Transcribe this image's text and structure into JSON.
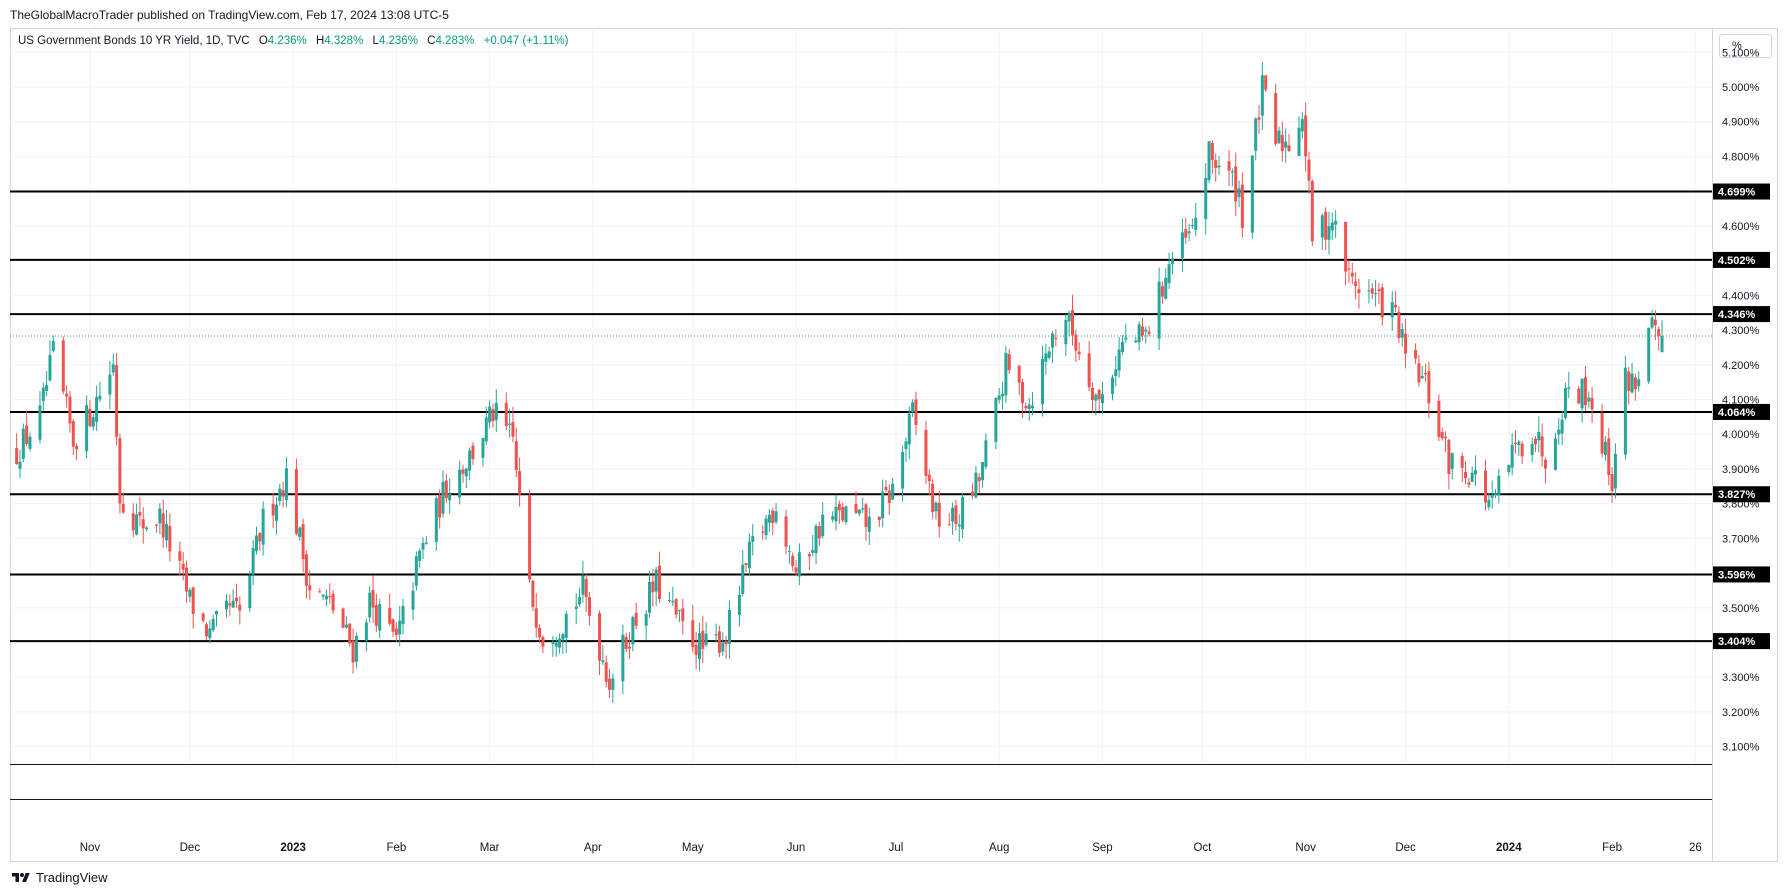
{
  "header": {
    "published_text": "TheGlobalMacroTrader published on TradingView.com, Feb 17, 2024 13:08 UTC-5"
  },
  "legend": {
    "symbol": "US Government Bonds 10 YR Yield, 1D, TVC",
    "open_label": "O",
    "open_value": "4.236%",
    "high_label": "H",
    "high_value": "4.328%",
    "low_label": "L",
    "low_value": "4.236%",
    "close_label": "C",
    "close_value": "4.283%",
    "change": "+0.047 (+1.11%)"
  },
  "price_axis": {
    "unit_button": "%",
    "ticks": [
      "5.100%",
      "5.000%",
      "4.900%",
      "4.800%",
      "4.600%",
      "4.400%",
      "4.300%",
      "4.200%",
      "4.100%",
      "4.000%",
      "3.900%",
      "3.800%",
      "3.700%",
      "3.500%",
      "3.300%",
      "3.200%",
      "3.100%"
    ]
  },
  "colors": {
    "up": "#26a69a",
    "down": "#ef5350",
    "level_line": "#000000",
    "current_price_line": "#26a69a",
    "grid": "#f0f3fa"
  },
  "footer": {
    "brand": "TradingView",
    "logo_icon": "tradingview-logo-icon"
  },
  "chart_data": {
    "type": "candlestick",
    "title": "US Government Bonds 10 YR Yield, 1D, TVC",
    "ylabel": "%",
    "ylim": [
      3.05,
      5.17
    ],
    "x_tick_labels": [
      {
        "label": "Nov",
        "date": "2022-11-01"
      },
      {
        "label": "Dec",
        "date": "2022-12-01"
      },
      {
        "label": "2023",
        "date": "2023-01-01"
      },
      {
        "label": "Feb",
        "date": "2023-02-01"
      },
      {
        "label": "Mar",
        "date": "2023-03-01"
      },
      {
        "label": "Apr",
        "date": "2023-04-01"
      },
      {
        "label": "May",
        "date": "2023-05-01"
      },
      {
        "label": "Jun",
        "date": "2023-06-01"
      },
      {
        "label": "Jul",
        "date": "2023-07-01"
      },
      {
        "label": "Aug",
        "date": "2023-08-01"
      },
      {
        "label": "Sep",
        "date": "2023-09-01"
      },
      {
        "label": "Oct",
        "date": "2023-10-01"
      },
      {
        "label": "Nov",
        "date": "2023-11-01"
      },
      {
        "label": "Dec",
        "date": "2023-12-01"
      },
      {
        "label": "2024",
        "date": "2024-01-01"
      },
      {
        "label": "Feb",
        "date": "2024-02-01"
      },
      {
        "label": "26",
        "date": "2024-02-26"
      }
    ],
    "xlim": [
      "2022-10-08",
      "2024-03-02"
    ],
    "key_levels": [
      {
        "label": "4.699%",
        "value": 4.699
      },
      {
        "label": "4.502%",
        "value": 4.502
      },
      {
        "label": "4.346%",
        "value": 4.346
      },
      {
        "label": "4.064%",
        "value": 4.064
      },
      {
        "label": "3.827%",
        "value": 3.827
      },
      {
        "label": "3.596%",
        "value": 3.596
      },
      {
        "label": "3.404%",
        "value": 3.404
      }
    ],
    "current_price": 4.283,
    "close_path": [
      {
        "date": "2022-10-10",
        "close": 3.95
      },
      {
        "date": "2022-10-17",
        "close": 4.05
      },
      {
        "date": "2022-10-21",
        "close": 4.23
      },
      {
        "date": "2022-10-27",
        "close": 3.98
      },
      {
        "date": "2022-11-01",
        "close": 4.06
      },
      {
        "date": "2022-11-08",
        "close": 4.2
      },
      {
        "date": "2022-11-10",
        "close": 3.82
      },
      {
        "date": "2022-11-16",
        "close": 3.74
      },
      {
        "date": "2022-11-22",
        "close": 3.76
      },
      {
        "date": "2022-12-01",
        "close": 3.52
      },
      {
        "date": "2022-12-07",
        "close": 3.42
      },
      {
        "date": "2022-12-13",
        "close": 3.5
      },
      {
        "date": "2022-12-16",
        "close": 3.48
      },
      {
        "date": "2022-12-23",
        "close": 3.75
      },
      {
        "date": "2022-12-30",
        "close": 3.88
      },
      {
        "date": "2023-01-06",
        "close": 3.56
      },
      {
        "date": "2023-01-13",
        "close": 3.5
      },
      {
        "date": "2023-01-19",
        "close": 3.38
      },
      {
        "date": "2023-01-24",
        "close": 3.52
      },
      {
        "date": "2023-02-01",
        "close": 3.4
      },
      {
        "date": "2023-02-08",
        "close": 3.65
      },
      {
        "date": "2023-02-16",
        "close": 3.85
      },
      {
        "date": "2023-02-24",
        "close": 3.95
      },
      {
        "date": "2023-03-02",
        "close": 4.06
      },
      {
        "date": "2023-03-08",
        "close": 3.98
      },
      {
        "date": "2023-03-13",
        "close": 3.55
      },
      {
        "date": "2023-03-17",
        "close": 3.42
      },
      {
        "date": "2023-03-22",
        "close": 3.45
      },
      {
        "date": "2023-03-29",
        "close": 3.55
      },
      {
        "date": "2023-04-06",
        "close": 3.29
      },
      {
        "date": "2023-04-13",
        "close": 3.45
      },
      {
        "date": "2023-04-20",
        "close": 3.57
      },
      {
        "date": "2023-04-28",
        "close": 3.44
      },
      {
        "date": "2023-05-04",
        "close": 3.38
      },
      {
        "date": "2023-05-11",
        "close": 3.42
      },
      {
        "date": "2023-05-19",
        "close": 3.68
      },
      {
        "date": "2023-05-26",
        "close": 3.8
      },
      {
        "date": "2023-06-01",
        "close": 3.6
      },
      {
        "date": "2023-06-09",
        "close": 3.75
      },
      {
        "date": "2023-06-16",
        "close": 3.77
      },
      {
        "date": "2023-06-23",
        "close": 3.74
      },
      {
        "date": "2023-06-30",
        "close": 3.84
      },
      {
        "date": "2023-07-06",
        "close": 4.06
      },
      {
        "date": "2023-07-13",
        "close": 3.76
      },
      {
        "date": "2023-07-19",
        "close": 3.75
      },
      {
        "date": "2023-07-26",
        "close": 3.87
      },
      {
        "date": "2023-08-03",
        "close": 4.19
      },
      {
        "date": "2023-08-10",
        "close": 4.09
      },
      {
        "date": "2023-08-17",
        "close": 4.28
      },
      {
        "date": "2023-08-21",
        "close": 4.34
      },
      {
        "date": "2023-08-25",
        "close": 4.24
      },
      {
        "date": "2023-08-31",
        "close": 4.09
      },
      {
        "date": "2023-09-07",
        "close": 4.26
      },
      {
        "date": "2023-09-14",
        "close": 4.28
      },
      {
        "date": "2023-09-21",
        "close": 4.49
      },
      {
        "date": "2023-09-28",
        "close": 4.58
      },
      {
        "date": "2023-10-03",
        "close": 4.8
      },
      {
        "date": "2023-10-06",
        "close": 4.78
      },
      {
        "date": "2023-10-12",
        "close": 4.7
      },
      {
        "date": "2023-10-13",
        "close": 4.63
      },
      {
        "date": "2023-10-19",
        "close": 4.99
      },
      {
        "date": "2023-10-23",
        "close": 4.84
      },
      {
        "date": "2023-10-27",
        "close": 4.84
      },
      {
        "date": "2023-10-31",
        "close": 4.93
      },
      {
        "date": "2023-11-03",
        "close": 4.57
      },
      {
        "date": "2023-11-09",
        "close": 4.62
      },
      {
        "date": "2023-11-14",
        "close": 4.45
      },
      {
        "date": "2023-11-21",
        "close": 4.4
      },
      {
        "date": "2023-11-28",
        "close": 4.34
      },
      {
        "date": "2023-12-01",
        "close": 4.22
      },
      {
        "date": "2023-12-07",
        "close": 4.14
      },
      {
        "date": "2023-12-14",
        "close": 3.92
      },
      {
        "date": "2023-12-21",
        "close": 3.89
      },
      {
        "date": "2023-12-27",
        "close": 3.79
      },
      {
        "date": "2024-01-02",
        "close": 3.94
      },
      {
        "date": "2024-01-08",
        "close": 4.01
      },
      {
        "date": "2024-01-12",
        "close": 3.94
      },
      {
        "date": "2024-01-19",
        "close": 4.14
      },
      {
        "date": "2024-01-25",
        "close": 4.12
      },
      {
        "date": "2024-02-01",
        "close": 3.87
      },
      {
        "date": "2024-02-05",
        "close": 4.16
      },
      {
        "date": "2024-02-08",
        "close": 4.15
      },
      {
        "date": "2024-02-13",
        "close": 4.31
      },
      {
        "date": "2024-02-15",
        "close": 4.24
      },
      {
        "date": "2024-02-16",
        "close": 4.283
      }
    ]
  }
}
